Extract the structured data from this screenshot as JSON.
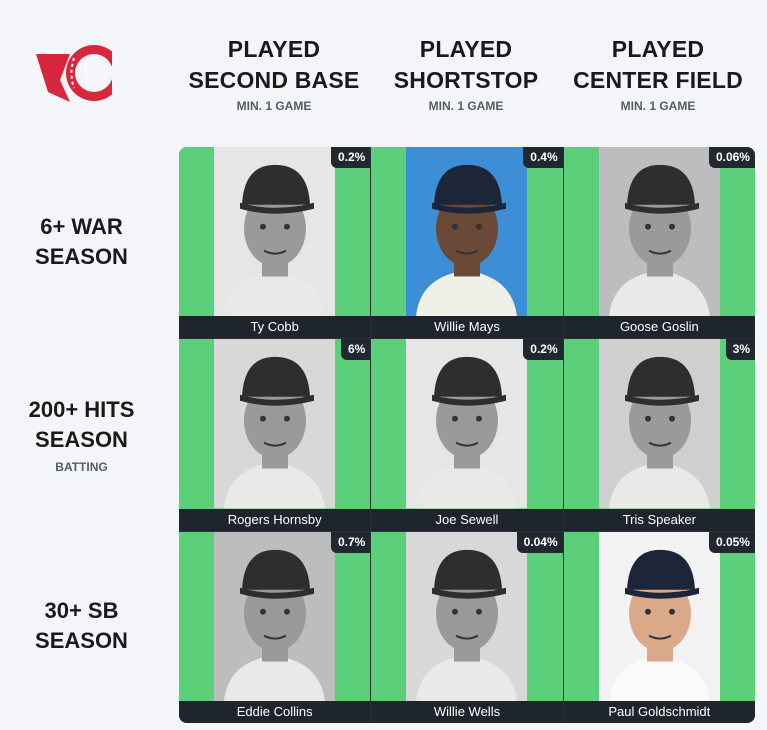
{
  "colors": {
    "brand_red": "#d7263d",
    "correct_green": "#5ccf7a",
    "label_dark": "#1f252d"
  },
  "logo": {
    "icon": "baseball-logo-icon"
  },
  "columns": [
    {
      "title_line1": "PLAYED",
      "title_line2": "SECOND BASE",
      "subtitle": "MIN. 1 GAME"
    },
    {
      "title_line1": "PLAYED",
      "title_line2": "SHORTSTOP",
      "subtitle": "MIN. 1 GAME"
    },
    {
      "title_line1": "PLAYED",
      "title_line2": "CENTER FIELD",
      "subtitle": "MIN. 1 GAME"
    }
  ],
  "rows": [
    {
      "title_line1": "6+ WAR",
      "title_line2": "SEASON",
      "subtitle": ""
    },
    {
      "title_line1": "200+ HITS",
      "title_line2": "SEASON",
      "subtitle": "BATTING"
    },
    {
      "title_line1": "30+ SB",
      "title_line2": "SEASON",
      "subtitle": ""
    }
  ],
  "cells": [
    {
      "name": "Ty Cobb",
      "rarity": "0.2%",
      "photo": "black-and-white"
    },
    {
      "name": "Willie Mays",
      "rarity": "0.4%",
      "photo": "color"
    },
    {
      "name": "Goose Goslin",
      "rarity": "0.06%",
      "photo": "black-and-white"
    },
    {
      "name": "Rogers Hornsby",
      "rarity": "6%",
      "photo": "black-and-white"
    },
    {
      "name": "Joe Sewell",
      "rarity": "0.2%",
      "photo": "black-and-white"
    },
    {
      "name": "Tris Speaker",
      "rarity": "3%",
      "photo": "black-and-white"
    },
    {
      "name": "Eddie Collins",
      "rarity": "0.7%",
      "photo": "black-and-white"
    },
    {
      "name": "Willie Wells",
      "rarity": "0.04%",
      "photo": "black-and-white"
    },
    {
      "name": "Paul Goldschmidt",
      "rarity": "0.05%",
      "photo": "color"
    }
  ]
}
